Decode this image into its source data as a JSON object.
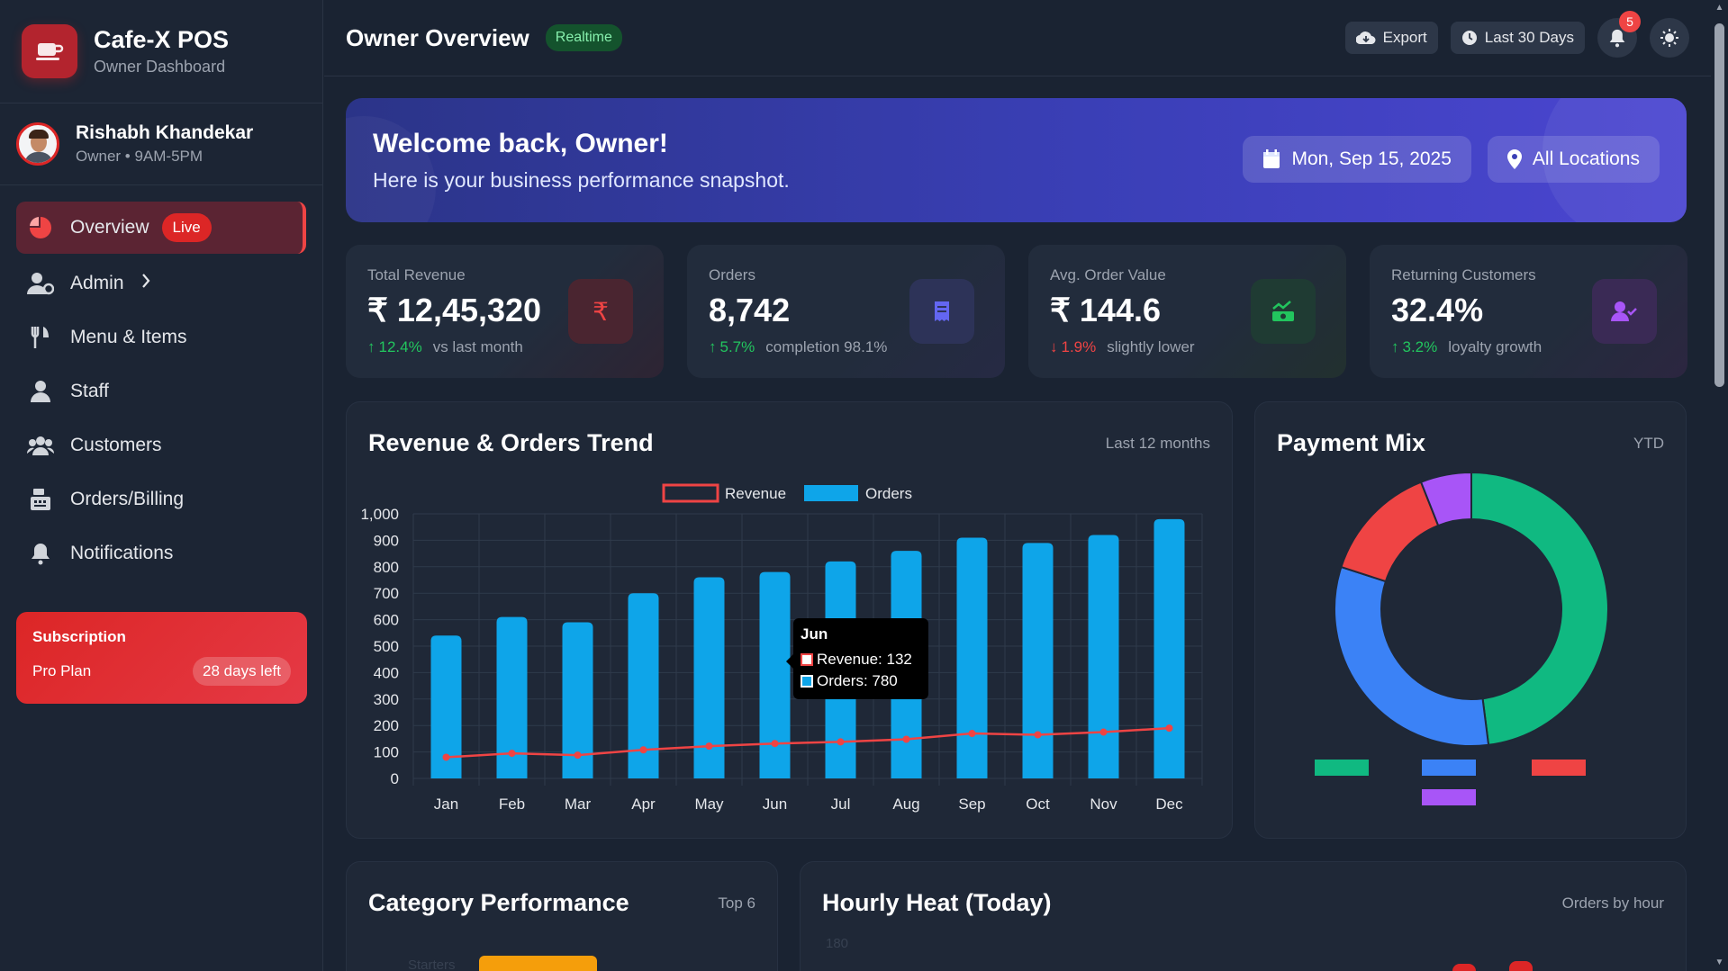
{
  "brand": {
    "title": "Cafe-X POS",
    "subtitle": "Owner Dashboard"
  },
  "user": {
    "name": "Rishabh Khandekar",
    "meta": "Owner • 9AM-5PM"
  },
  "nav": {
    "overview": "Overview",
    "live_badge": "Live",
    "admin": "Admin",
    "menu_items": "Menu & Items",
    "staff": "Staff",
    "customers": "Customers",
    "orders_billing": "Orders/Billing",
    "notifications": "Notifications"
  },
  "subscription": {
    "title": "Subscription",
    "plan": "Pro Plan",
    "days_left": "28 days left"
  },
  "topbar": {
    "title": "Owner Overview",
    "badge": "Realtime",
    "export": "Export",
    "range": "Last 30 Days",
    "notif_count": "5"
  },
  "hero": {
    "title": "Welcome back, Owner!",
    "subtitle": "Here is your business performance snapshot.",
    "date": "Mon, Sep 15, 2025",
    "location": "All Locations"
  },
  "stats": [
    {
      "label": "Total Revenue",
      "value": "₹ 12,45,320",
      "delta": "12.4%",
      "note": "vs last month",
      "direction": "up",
      "icon": "rupee-icon",
      "color": "#ef4444"
    },
    {
      "label": "Orders",
      "value": "8,742",
      "delta": "5.7%",
      "note": "completion 98.1%",
      "direction": "up",
      "icon": "receipt-icon",
      "color": "#6366f1"
    },
    {
      "label": "Avg. Order Value",
      "value": "₹ 144.6",
      "delta": "1.9%",
      "note": "slightly lower",
      "direction": "down",
      "icon": "money-chart-icon",
      "color": "#22c55e"
    },
    {
      "label": "Returning Customers",
      "value": "32.4%",
      "delta": "3.2%",
      "note": "loyalty growth",
      "direction": "up",
      "icon": "user-check-icon",
      "color": "#a855f7"
    }
  ],
  "trend_panel": {
    "title": "Revenue & Orders Trend",
    "meta": "Last 12 months"
  },
  "payment_panel": {
    "title": "Payment Mix",
    "meta": "YTD"
  },
  "category_panel": {
    "title": "Category Performance",
    "meta": "Top 6",
    "first_label": "Starters"
  },
  "hourly_panel": {
    "title": "Hourly Heat (Today)",
    "meta": "Orders by hour",
    "first_tick": "180"
  },
  "tooltip": {
    "title": "Jun",
    "revenue": "Revenue: 132",
    "orders": "Orders: 780"
  },
  "chart_data": [
    {
      "type": "bar",
      "title": "Revenue & Orders Trend",
      "categories": [
        "Jan",
        "Feb",
        "Mar",
        "Apr",
        "May",
        "Jun",
        "Jul",
        "Aug",
        "Sep",
        "Oct",
        "Nov",
        "Dec"
      ],
      "series": [
        {
          "name": "Revenue",
          "type": "line",
          "color": "#ef4444",
          "values": [
            80,
            95,
            88,
            108,
            122,
            132,
            138,
            148,
            170,
            165,
            175,
            190
          ]
        },
        {
          "name": "Orders",
          "type": "bar",
          "color": "#0ea5e9",
          "values": [
            540,
            610,
            590,
            700,
            760,
            780,
            820,
            860,
            910,
            890,
            920,
            980
          ]
        }
      ],
      "yticks": [
        "1,000",
        "900",
        "800",
        "700",
        "600",
        "500",
        "400",
        "300",
        "200",
        "100",
        "0"
      ],
      "ylim": [
        0,
        1000
      ],
      "legend": "top-center",
      "grid": true
    },
    {
      "type": "pie",
      "title": "Payment Mix",
      "slices": [
        {
          "value": 48,
          "color": "#10b981"
        },
        {
          "value": 32,
          "color": "#3b82f6"
        },
        {
          "value": 14,
          "color": "#ef4444"
        },
        {
          "value": 6,
          "color": "#a855f7"
        }
      ],
      "legend": "bottom"
    }
  ]
}
